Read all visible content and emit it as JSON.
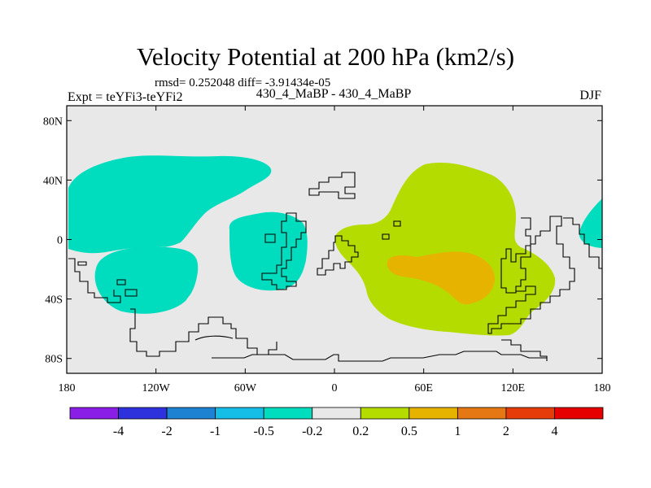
{
  "title": "Velocity Potential at 200 hPa (km2/s)",
  "stats_line": "rmsd= 0.252048 diff= -3.91434e-05",
  "left_label": "Expt = teYFi3-teYFi2",
  "center_label": "430_4_MaBP - 430_4_MaBP",
  "right_label": "DJF",
  "lat_ticks": [
    {
      "lat": 80,
      "label": "80N"
    },
    {
      "lat": 40,
      "label": "40N"
    },
    {
      "lat": 0,
      "label": "0"
    },
    {
      "lat": -40,
      "label": "40S"
    },
    {
      "lat": -80,
      "label": "80S"
    }
  ],
  "lon_ticks": [
    {
      "lon": -180,
      "label": "180"
    },
    {
      "lon": -120,
      "label": "120W"
    },
    {
      "lon": -60,
      "label": "60W"
    },
    {
      "lon": 0,
      "label": "0"
    },
    {
      "lon": 60,
      "label": "60E"
    },
    {
      "lon": 120,
      "label": "120E"
    },
    {
      "lon": 180,
      "label": "180"
    }
  ],
  "colorbar": {
    "colors": [
      "#8a1ee6",
      "#2d32dc",
      "#1e82d2",
      "#14bee6",
      "#00dcbe",
      "#e8e8e8",
      "#b4dc00",
      "#e6b400",
      "#e67814",
      "#e63c0a",
      "#e60000"
    ],
    "labels": [
      "-4",
      "-2",
      "-1",
      "-0.5",
      "-0.2",
      "0.2",
      "0.5",
      "1",
      "2",
      "4"
    ]
  },
  "colors": {
    "neutral": "#e8e8e8",
    "negative_fill": "#00dcbe",
    "positive_fill": "#b4dc00",
    "strong_fill": "#e6b400"
  }
}
